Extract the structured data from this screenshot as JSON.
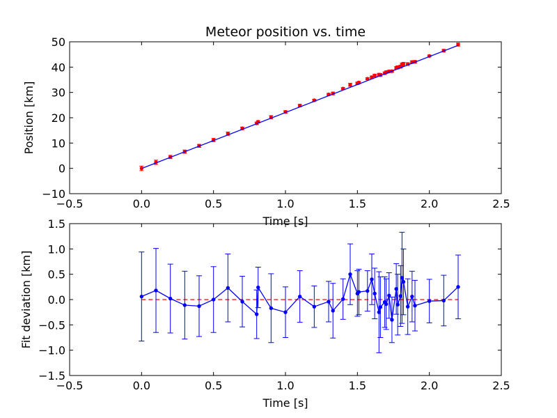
{
  "chart_data": [
    {
      "type": "line",
      "title": "Meteor position vs. time",
      "xlabel": "Time [s]",
      "ylabel": "Position [km]",
      "xlim": [
        -0.5,
        2.5
      ],
      "ylim": [
        -10,
        50
      ],
      "xticks": [
        "−0.5",
        "0.0",
        "0.5",
        "1.0",
        "1.5",
        "2.0",
        "2.5"
      ],
      "yticks": [
        "−10",
        "0",
        "10",
        "20",
        "30",
        "40",
        "50"
      ],
      "grid": false,
      "legend": "none",
      "series": [
        {
          "kind": "errorbar-points",
          "color": "#ff0000",
          "x": [
            0.0,
            0.1,
            0.2,
            0.3,
            0.4,
            0.5,
            0.6,
            0.7,
            0.8,
            0.81,
            0.9,
            1.0,
            1.1,
            1.2,
            1.3,
            1.33,
            1.4,
            1.45,
            1.5,
            1.51,
            1.57,
            1.6,
            1.62,
            1.65,
            1.66,
            1.69,
            1.7,
            1.72,
            1.74,
            1.77,
            1.78,
            1.8,
            1.81,
            1.82,
            1.85,
            1.88,
            1.9,
            2.0,
            2.1,
            2.2
          ],
          "y": [
            0.0,
            2.4,
            4.5,
            6.6,
            8.9,
            11.2,
            13.7,
            15.8,
            17.8,
            18.4,
            20.2,
            22.3,
            24.8,
            26.9,
            29.2,
            29.6,
            31.5,
            33.0,
            33.6,
            33.9,
            35.4,
            36.0,
            36.7,
            37.0,
            36.9,
            37.6,
            38.0,
            38.3,
            38.4,
            39.7,
            39.9,
            40.2,
            41.0,
            41.2,
            41.2,
            42.0,
            42.1,
            44.4,
            46.5,
            48.9
          ],
          "yerr": [
            0.9,
            0.85,
            0.65,
            0.65,
            0.6,
            0.65,
            0.65,
            0.5,
            0.5,
            0.45,
            0.65,
            0.5,
            0.5,
            0.4,
            0.4,
            0.55,
            0.4,
            0.6,
            0.45,
            0.45,
            0.4,
            0.5,
            0.5,
            0.55,
            0.6,
            0.5,
            0.5,
            0.45,
            0.45,
            0.5,
            0.6,
            0.6,
            0.6,
            0.7,
            0.55,
            0.5,
            0.5,
            0.35,
            0.5,
            0.6
          ]
        },
        {
          "kind": "fit-line",
          "color": "#0000ff",
          "x": [
            0.0,
            2.2
          ],
          "y": [
            -0.05,
            48.6
          ]
        }
      ]
    },
    {
      "type": "line",
      "title": "",
      "xlabel": "Time [s]",
      "ylabel": "Fit deviation [km]",
      "xlim": [
        -0.5,
        2.5
      ],
      "ylim": [
        -1.5,
        1.5
      ],
      "xticks": [
        "−0.5",
        "0.0",
        "0.5",
        "1.0",
        "1.5",
        "2.0",
        "2.5"
      ],
      "yticks": [
        "−1.5",
        "−1.0",
        "−0.5",
        "0.0",
        "0.5",
        "1.0",
        "1.5"
      ],
      "grid": false,
      "legend": "none",
      "zero_line_color": "#ff0000",
      "series": [
        {
          "kind": "errorbar-line",
          "color": "#0000ff",
          "x": [
            0.0,
            0.1,
            0.2,
            0.3,
            0.4,
            0.5,
            0.6,
            0.7,
            0.8,
            0.81,
            0.9,
            1.0,
            1.1,
            1.2,
            1.3,
            1.33,
            1.4,
            1.45,
            1.5,
            1.51,
            1.57,
            1.6,
            1.62,
            1.65,
            1.66,
            1.69,
            1.7,
            1.72,
            1.74,
            1.77,
            1.78,
            1.8,
            1.81,
            1.82,
            1.85,
            1.88,
            1.9,
            2.0,
            2.1,
            2.2
          ],
          "y": [
            0.06,
            0.18,
            0.02,
            -0.11,
            -0.13,
            0.0,
            0.23,
            -0.04,
            -0.29,
            0.24,
            -0.17,
            -0.25,
            0.06,
            -0.14,
            -0.04,
            -0.22,
            0.01,
            0.5,
            0.12,
            0.15,
            0.17,
            0.4,
            0.12,
            -0.25,
            -0.15,
            -0.05,
            -0.09,
            0.08,
            -0.4,
            0.21,
            -0.1,
            0.07,
            0.43,
            0.35,
            -0.14,
            0.06,
            -0.12,
            -0.03,
            -0.02,
            0.25
          ],
          "yerr": [
            0.88,
            0.83,
            0.68,
            0.67,
            0.6,
            0.65,
            0.67,
            0.5,
            0.48,
            0.4,
            0.68,
            0.5,
            0.51,
            0.41,
            0.4,
            0.54,
            0.4,
            0.6,
            0.45,
            0.45,
            0.4,
            0.5,
            0.5,
            0.8,
            0.6,
            0.5,
            0.5,
            0.45,
            0.45,
            0.5,
            0.6,
            0.6,
            0.9,
            0.65,
            0.55,
            0.5,
            0.5,
            0.43,
            0.5,
            0.63
          ]
        }
      ]
    }
  ]
}
